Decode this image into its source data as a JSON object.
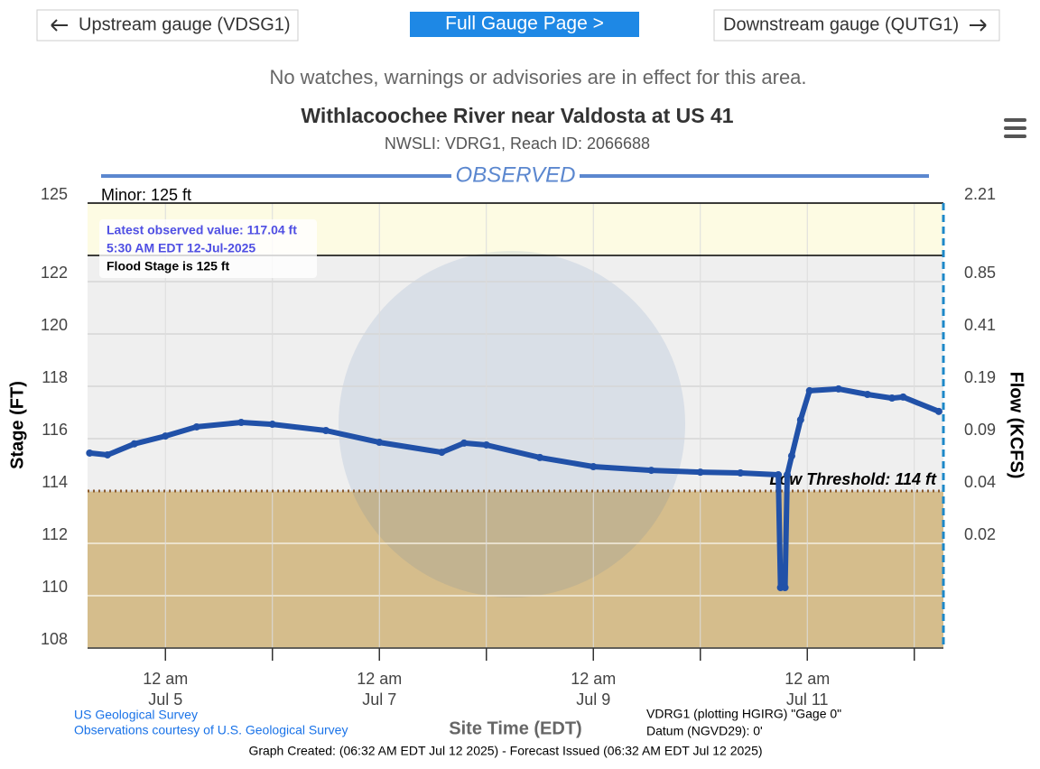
{
  "nav": {
    "upstream": "Upstream gauge (VDSG1)",
    "full": "Full Gauge Page >",
    "downstream": "Downstream gauge (QUTG1)"
  },
  "alert": "No watches, warnings or advisories are in effect for this area.",
  "chart_data": {
    "type": "line",
    "title": "Withlacoochee River near Valdosta at US 41",
    "subtitle": "NWSLI: VDRG1, Reach ID: 2066688",
    "banner": {
      "label": "OBSERVED",
      "color": "#5b87cf"
    },
    "ylabel": "Stage (FT)",
    "y2label": "Flow (KCFS)",
    "xlabel": "Site Time (EDT)",
    "x": [
      "2025-07-04T07:00",
      "2025-07-04T11:00",
      "2025-07-04T17:00",
      "2025-07-05T00:00",
      "2025-07-05T07:00",
      "2025-07-05T17:00",
      "2025-07-06T00:00",
      "2025-07-06T12:00",
      "2025-07-07T00:00",
      "2025-07-07T14:00",
      "2025-07-07T19:00",
      "2025-07-08T00:00",
      "2025-07-08T12:00",
      "2025-07-09T00:00",
      "2025-07-09T13:00",
      "2025-07-10T00:00",
      "2025-07-10T09:00",
      "2025-07-10T17:30",
      "2025-07-10T18:00",
      "2025-07-10T19:00",
      "2025-07-10T19:30",
      "2025-07-10T20:30",
      "2025-07-10T22:30",
      "2025-07-11T00:30",
      "2025-07-11T07:00",
      "2025-07-11T13:30",
      "2025-07-11T19:00",
      "2025-07-11T21:30",
      "2025-07-12T05:30"
    ],
    "series": [
      {
        "name": "OBSERVED",
        "color": "#2151a8",
        "values": [
          115.45,
          115.38,
          115.8,
          116.1,
          116.45,
          116.62,
          116.55,
          116.31,
          115.86,
          115.48,
          115.83,
          115.76,
          115.28,
          114.93,
          114.79,
          114.72,
          114.69,
          114.62,
          110.31,
          110.31,
          114.62,
          115.34,
          116.72,
          117.83,
          117.9,
          117.69,
          117.55,
          117.59,
          117.04
        ]
      }
    ],
    "xlim": [
      "2025-07-04T06:32",
      "2025-07-12T06:32"
    ],
    "xticks": [
      {
        "value": "2025-07-05T00:00",
        "label": [
          "12 am",
          "Jul 5"
        ]
      },
      {
        "value": "2025-07-07T00:00",
        "label": [
          "12 am",
          "Jul 7"
        ]
      },
      {
        "value": "2025-07-09T00:00",
        "label": [
          "12 am",
          "Jul 9"
        ]
      },
      {
        "value": "2025-07-11T00:00",
        "label": [
          "12 am",
          "Jul 11"
        ]
      }
    ],
    "xminor": [
      "2025-07-06T00:00",
      "2025-07-08T00:00",
      "2025-07-10T00:00",
      "2025-07-12T00:00"
    ],
    "ylim": [
      108,
      125
    ],
    "yticks": [
      108,
      110,
      112,
      114,
      116,
      118,
      120,
      122,
      125
    ],
    "rating": {
      "stage": [
        125,
        122,
        120,
        118,
        116,
        114,
        112
      ],
      "flow": [
        2.21,
        0.85,
        0.41,
        0.19,
        0.09,
        0.04,
        0.02
      ]
    },
    "grid": true,
    "bands": [
      {
        "from": 123,
        "to": 125,
        "color": "#fdfbe3"
      }
    ],
    "thresholds": [
      {
        "label": "Minor: 125 ft",
        "value": 125,
        "line": "solid",
        "color": "#000000"
      },
      {
        "label": "Low Threshold: 114 ft",
        "value": 114,
        "line": "dotted",
        "color": "#8b5a2b",
        "fill_below": "#d5bd8c"
      }
    ],
    "tooltip": [
      "Latest observed value: 117.04 ft",
      "5:30 AM EDT 12-Jul-2025",
      "Flood Stage is 125 ft"
    ]
  },
  "footer": {
    "credit1": "US Geological Survey",
    "credit2": "Observations courtesy of U.S. Geological Survey",
    "datum1": "VDRG1 (plotting HGIRG) \"Gage 0\"",
    "datum2": "Datum (NGVD29): 0'",
    "created": "Graph Created: (06:32 AM EDT Jul 12 2025) - Forecast Issued (06:32 AM EDT Jul 12 2025)"
  }
}
